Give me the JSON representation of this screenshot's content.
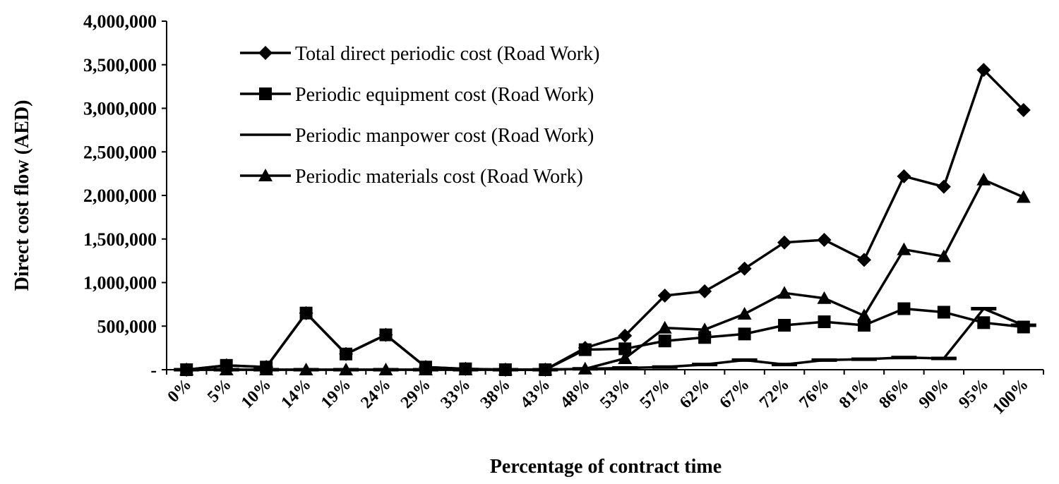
{
  "chart_data": {
    "type": "line",
    "title": "",
    "xlabel": "Percentage of contract time",
    "ylabel": "Direct cost flow (AED)",
    "categories": [
      "0%",
      "5%",
      "10%",
      "14%",
      "19%",
      "24%",
      "29%",
      "33%",
      "38%",
      "43%",
      "48%",
      "53%",
      "57%",
      "62%",
      "67%",
      "72%",
      "76%",
      "81%",
      "86%",
      "90%",
      "95%",
      "100%"
    ],
    "ylim": [
      0,
      4000000
    ],
    "yticks": [
      0,
      500000,
      1000000,
      1500000,
      2000000,
      2500000,
      3000000,
      3500000,
      4000000
    ],
    "ytick_labels": [
      "-",
      "500,000",
      "1,000,000",
      "1,500,000",
      "2,000,000",
      "2,500,000",
      "3,000,000",
      "3,500,000",
      "4,000,000"
    ],
    "grid": false,
    "legend_position": "top-left",
    "series": [
      {
        "name": "Total  direct periodic cost (Road Work)",
        "marker": "diamond",
        "values": [
          0,
          50000,
          30000,
          650000,
          180000,
          400000,
          30000,
          10000,
          0,
          0,
          250000,
          390000,
          850000,
          900000,
          1160000,
          1460000,
          1490000,
          1260000,
          2220000,
          2100000,
          3440000,
          2980000
        ]
      },
      {
        "name": "Periodic equipment cost (Road Work)",
        "marker": "square",
        "values": [
          0,
          50000,
          30000,
          650000,
          180000,
          400000,
          30000,
          10000,
          0,
          0,
          230000,
          240000,
          330000,
          370000,
          410000,
          510000,
          550000,
          510000,
          700000,
          660000,
          540000,
          490000
        ]
      },
      {
        "name": "Periodic manpower cost (Road Work)",
        "marker": "dash",
        "values": [
          0,
          0,
          0,
          0,
          0,
          0,
          0,
          0,
          0,
          0,
          10000,
          20000,
          30000,
          60000,
          110000,
          60000,
          110000,
          120000,
          140000,
          130000,
          700000,
          510000
        ]
      },
      {
        "name": "Periodic materials cost (Road Work)",
        "marker": "triangle",
        "values": [
          0,
          0,
          0,
          0,
          0,
          0,
          0,
          0,
          0,
          0,
          10000,
          130000,
          480000,
          460000,
          640000,
          880000,
          820000,
          620000,
          1380000,
          1300000,
          2180000,
          1980000
        ]
      }
    ]
  }
}
